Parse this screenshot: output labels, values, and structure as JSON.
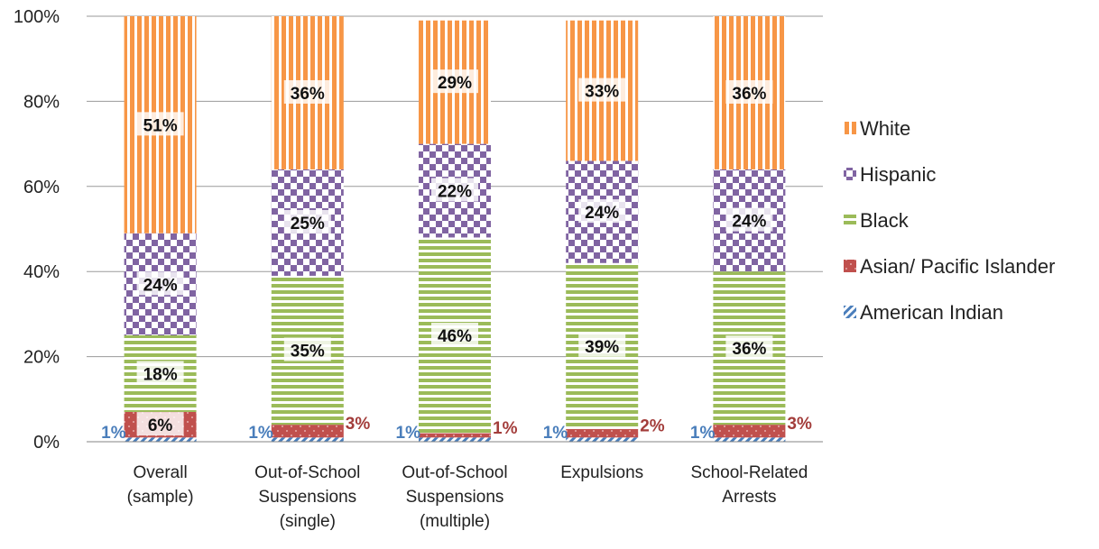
{
  "chart_data": {
    "type": "bar",
    "stacked": true,
    "categories": [
      [
        "Overall",
        "(sample)"
      ],
      [
        "Out-of-School",
        "Suspensions",
        "(single)"
      ],
      [
        "Out-of-School",
        "Suspensions",
        "(multiple)"
      ],
      [
        "Expulsions"
      ],
      [
        "School-Related",
        "Arrests"
      ]
    ],
    "series": [
      {
        "name": "American Indian",
        "values": [
          1,
          1,
          1,
          1,
          1
        ],
        "labels": [
          "1%",
          "1%",
          "1%",
          "1%",
          "1%"
        ],
        "color": "#4a7ebb",
        "pattern": "diagonal-stripes"
      },
      {
        "name": "Asian/ Pacific Islander",
        "values": [
          6,
          3,
          1,
          2,
          3
        ],
        "labels": [
          "6%",
          "3%",
          "1%",
          "2%",
          "3%"
        ],
        "color": "#c0504d",
        "pattern": "dots"
      },
      {
        "name": "Black",
        "values": [
          18,
          35,
          46,
          39,
          36
        ],
        "labels": [
          "18%",
          "35%",
          "46%",
          "39%",
          "36%"
        ],
        "color": "#9bbb59",
        "pattern": "horizontal-stripes"
      },
      {
        "name": "Hispanic",
        "values": [
          24,
          25,
          22,
          24,
          24
        ],
        "labels": [
          "24%",
          "25%",
          "22%",
          "24%",
          "24%"
        ],
        "color": "#8064a2",
        "pattern": "checkerboard"
      },
      {
        "name": "White",
        "values": [
          51,
          36,
          29,
          33,
          36
        ],
        "labels": [
          "51%",
          "36%",
          "29%",
          "33%",
          "36%"
        ],
        "color": "#f79646",
        "pattern": "vertical-stripes"
      }
    ],
    "yticks": [
      "0%",
      "20%",
      "40%",
      "60%",
      "80%",
      "100%"
    ],
    "ylim": [
      0,
      100
    ],
    "legend_position": "right",
    "grid": true
  }
}
